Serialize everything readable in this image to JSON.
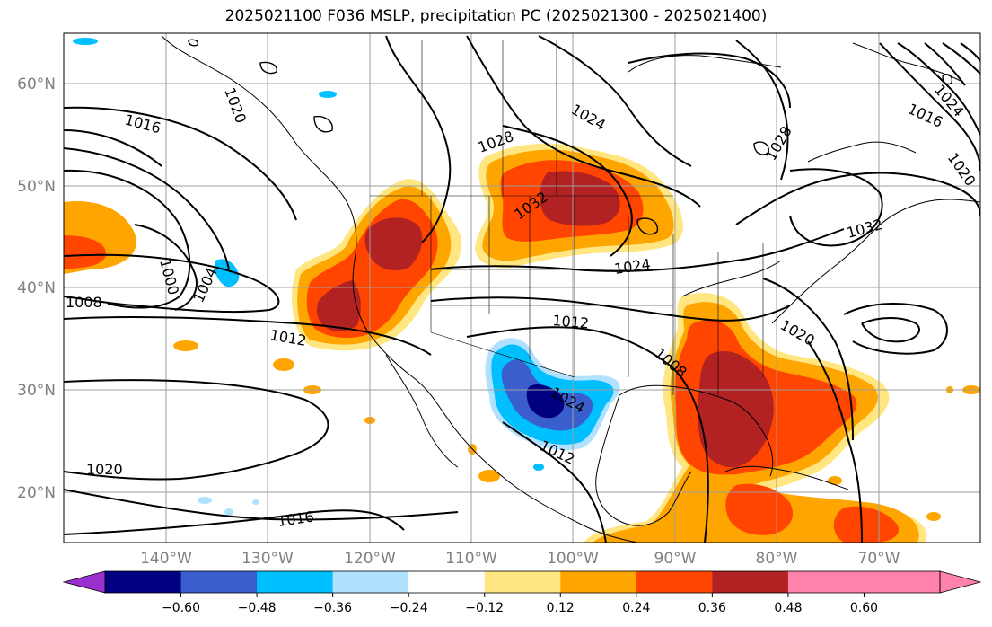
{
  "title": "2025021100 F036 MSLP, precipitation PC (2025021300 - 2025021400)",
  "lat_labels": [
    "60°N",
    "50°N",
    "40°N",
    "30°N",
    "20°N"
  ],
  "lon_labels": [
    "140°W",
    "130°W",
    "120°W",
    "110°W",
    "100°W",
    "90°W",
    "80°W",
    "70°W"
  ],
  "colorbar": {
    "ticks": [
      "−0.60",
      "−0.48",
      "−0.36",
      "−0.24",
      "−0.12",
      "0.12",
      "0.24",
      "0.36",
      "0.48",
      "0.60"
    ],
    "colors": [
      "#9b30d0",
      "#000080",
      "#3a5fcd",
      "#00bfff",
      "#b0e2ff",
      "#ffffff",
      "#ffe680",
      "#ffa500",
      "#ff4500",
      "#b22222",
      "#ff82ab",
      "#ff82ab"
    ]
  },
  "isobar_labels": [
    "1016",
    "1000",
    "1004",
    "1008",
    "1012",
    "1020",
    "1016",
    "1028",
    "1024",
    "1032",
    "1024",
    "1012",
    "1008",
    "1024",
    "1012",
    "1020",
    "1032",
    "1028",
    "1020",
    "1016",
    "1020",
    "1024"
  ],
  "colors": {
    "positive_low": "#ffe680",
    "positive_mid": "#ffa500",
    "positive_high": "#ff4500",
    "positive_max": "#b22222",
    "negative_low": "#b0e2ff",
    "negative_mid": "#00bfff",
    "negative_high": "#3a5fcd",
    "negative_max": "#000080"
  }
}
